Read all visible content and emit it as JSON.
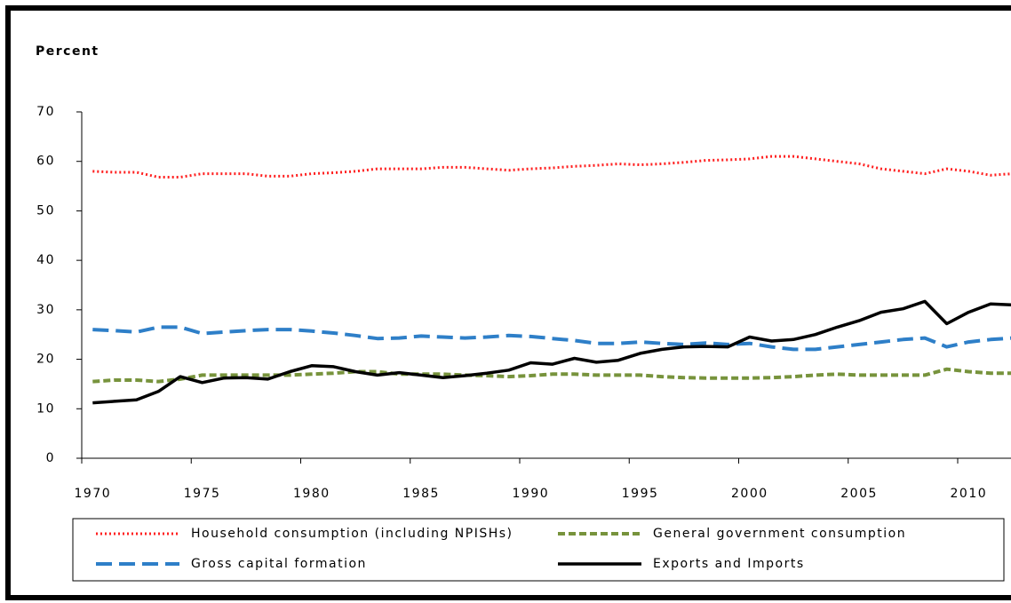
{
  "chart_data": {
    "type": "line",
    "y_axis_label": "Percent",
    "categories": [
      "1970",
      null,
      null,
      null,
      null,
      "1975",
      null,
      null,
      null,
      null,
      "1980",
      null,
      null,
      null,
      null,
      "1985",
      null,
      null,
      null,
      null,
      "1990",
      null,
      null,
      null,
      null,
      "1995",
      null,
      null,
      null,
      null,
      "2000",
      null,
      null,
      null,
      null,
      "2005",
      null,
      null,
      null,
      null,
      "2010",
      null,
      null
    ],
    "ylim": [
      0,
      70
    ],
    "yticks": [
      0,
      10,
      20,
      30,
      40,
      50,
      60,
      70
    ],
    "legend": "bottom",
    "series": [
      {
        "name": "Household consumption (including NPISHs)",
        "color": "#ff2020",
        "style": "dotted",
        "values": [
          58,
          57.8,
          57.8,
          56.8,
          56.8,
          57.5,
          57.5,
          57.5,
          57,
          57,
          57.5,
          57.7,
          58,
          58.5,
          58.5,
          58.5,
          58.8,
          58.8,
          58.5,
          58.2,
          58.5,
          58.7,
          59,
          59.2,
          59.5,
          59.3,
          59.5,
          59.8,
          60.2,
          60.3,
          60.5,
          61,
          61,
          60.5,
          60,
          59.5,
          58.5,
          58,
          57.5,
          58.5,
          58,
          57.2,
          57.5
        ]
      },
      {
        "name": "General government consumption",
        "color": "#77933c",
        "style": "dashed",
        "values": [
          15.5,
          15.8,
          15.8,
          15.5,
          16,
          16.8,
          16.8,
          16.8,
          16.8,
          16.8,
          17,
          17.2,
          17.5,
          17.5,
          17,
          17,
          17,
          16.8,
          16.7,
          16.5,
          16.7,
          17,
          17,
          16.8,
          16.8,
          16.8,
          16.5,
          16.3,
          16.2,
          16.2,
          16.2,
          16.3,
          16.5,
          16.8,
          17,
          16.8,
          16.8,
          16.8,
          16.8,
          18,
          17.5,
          17.2,
          17.2
        ]
      },
      {
        "name": "Gross capital formation",
        "color": "#2e7fc8",
        "style": "longdash",
        "values": [
          26,
          25.8,
          25.5,
          26.5,
          26.5,
          25.2,
          25.5,
          25.8,
          26,
          26,
          25.7,
          25.3,
          24.8,
          24.2,
          24.3,
          24.7,
          24.5,
          24.3,
          24.5,
          24.8,
          24.6,
          24.2,
          23.8,
          23.2,
          23.2,
          23.5,
          23.2,
          23,
          23.3,
          23,
          23.2,
          22.5,
          22,
          22,
          22.5,
          23,
          23.5,
          24,
          24.3,
          22.5,
          23.5,
          24,
          24.3
        ]
      },
      {
        "name": "Exports and Imports",
        "color": "#000000",
        "style": "solid",
        "values": [
          11.2,
          11.5,
          11.8,
          13.5,
          16.5,
          15.3,
          16.2,
          16.3,
          16,
          17.5,
          18.7,
          18.5,
          17.5,
          16.8,
          17.3,
          16.8,
          16.3,
          16.7,
          17.2,
          17.8,
          19.3,
          19,
          20.2,
          19.4,
          19.8,
          21.2,
          22,
          22.5,
          22.6,
          22.5,
          24.5,
          23.7,
          24,
          25,
          26.5,
          27.8,
          29.5,
          30.2,
          31.7,
          27.2,
          29.5,
          31.2,
          31
        ]
      }
    ]
  }
}
